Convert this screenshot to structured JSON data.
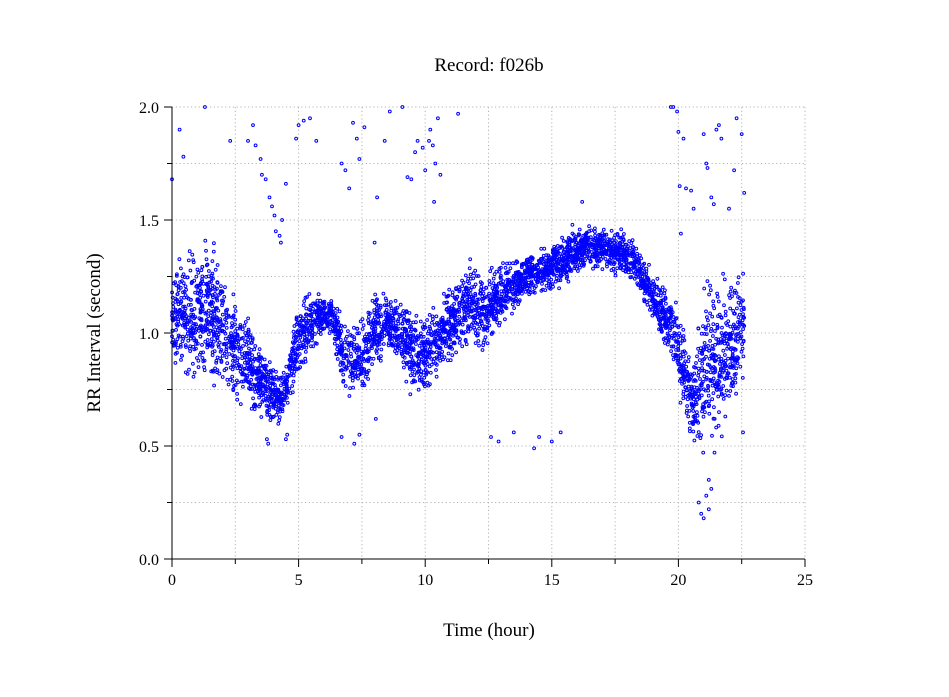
{
  "chart_data": {
    "type": "scatter",
    "title": "Record:  f026b",
    "xlabel": "Time (hour)",
    "ylabel": "RR Interval (second)",
    "xlim": [
      0,
      25
    ],
    "ylim": [
      0,
      2.0
    ],
    "x_ticks": [
      0,
      5,
      10,
      15,
      20,
      25
    ],
    "y_ticks": [
      "0.0",
      "0.5",
      "1.0",
      "1.5",
      "2.0"
    ],
    "grid": true,
    "marker_color": "#0000ff",
    "series": [
      {
        "trend_x": [
          0.0,
          0.5,
          1.0,
          1.5,
          2.0,
          2.5,
          3.0,
          3.5,
          4.0,
          4.3,
          4.6,
          5.0,
          5.3,
          5.8,
          6.3,
          6.8,
          7.3,
          7.7,
          8.0,
          8.5,
          9.0,
          9.5,
          9.8,
          10.2,
          10.8,
          11.3,
          11.8,
          12.3,
          12.8,
          13.3,
          13.8,
          14.3,
          14.8,
          15.3,
          15.8,
          16.3,
          16.8,
          17.3,
          17.8,
          18.3,
          18.8,
          19.3,
          19.8,
          20.2,
          20.5,
          20.8,
          21.1,
          21.4,
          21.7,
          22.0,
          22.3,
          22.6
        ],
        "trend_y": [
          1.1,
          1.08,
          1.12,
          1.1,
          1.02,
          0.93,
          0.88,
          0.8,
          0.72,
          0.7,
          0.8,
          0.97,
          1.02,
          1.08,
          1.07,
          0.9,
          0.88,
          0.92,
          1.03,
          1.04,
          1.0,
          0.92,
          0.9,
          0.93,
          1.02,
          1.08,
          1.12,
          1.1,
          1.15,
          1.2,
          1.23,
          1.26,
          1.28,
          1.3,
          1.35,
          1.38,
          1.38,
          1.37,
          1.36,
          1.3,
          1.2,
          1.1,
          1.0,
          0.85,
          0.7,
          0.75,
          0.85,
          0.9,
          0.88,
          0.92,
          1.0,
          1.05
        ],
        "spread": [
          0.14,
          0.18,
          0.2,
          0.18,
          0.16,
          0.14,
          0.12,
          0.1,
          0.08,
          0.06,
          0.08,
          0.1,
          0.1,
          0.06,
          0.05,
          0.1,
          0.1,
          0.12,
          0.1,
          0.08,
          0.1,
          0.12,
          0.12,
          0.1,
          0.1,
          0.1,
          0.12,
          0.1,
          0.09,
          0.07,
          0.06,
          0.06,
          0.06,
          0.07,
          0.07,
          0.06,
          0.06,
          0.06,
          0.06,
          0.06,
          0.07,
          0.08,
          0.1,
          0.12,
          0.12,
          0.16,
          0.22,
          0.26,
          0.24,
          0.18,
          0.16,
          0.15
        ],
        "outliers": [
          [
            0.0,
            1.68
          ],
          [
            0.3,
            1.9
          ],
          [
            0.45,
            1.78
          ],
          [
            1.3,
            2.0
          ],
          [
            2.3,
            1.85
          ],
          [
            3.0,
            1.85
          ],
          [
            3.2,
            1.92
          ],
          [
            3.3,
            1.83
          ],
          [
            3.5,
            1.77
          ],
          [
            3.55,
            1.7
          ],
          [
            3.7,
            1.68
          ],
          [
            3.85,
            1.6
          ],
          [
            3.95,
            1.56
          ],
          [
            4.05,
            1.52
          ],
          [
            4.1,
            1.45
          ],
          [
            4.25,
            1.43
          ],
          [
            4.3,
            1.4
          ],
          [
            4.35,
            1.5
          ],
          [
            4.5,
            1.66
          ],
          [
            4.9,
            1.86
          ],
          [
            5.0,
            1.92
          ],
          [
            5.2,
            1.94
          ],
          [
            5.45,
            1.95
          ],
          [
            5.7,
            1.85
          ],
          [
            6.7,
            1.75
          ],
          [
            6.85,
            1.72
          ],
          [
            7.0,
            1.64
          ],
          [
            7.15,
            1.93
          ],
          [
            7.3,
            1.86
          ],
          [
            7.4,
            1.77
          ],
          [
            7.6,
            1.91
          ],
          [
            8.0,
            1.4
          ],
          [
            8.1,
            1.6
          ],
          [
            8.4,
            1.85
          ],
          [
            8.6,
            1.98
          ],
          [
            9.1,
            2.0
          ],
          [
            9.3,
            1.69
          ],
          [
            9.45,
            1.68
          ],
          [
            9.6,
            1.8
          ],
          [
            9.7,
            1.85
          ],
          [
            9.9,
            1.82
          ],
          [
            10.0,
            1.72
          ],
          [
            10.15,
            1.85
          ],
          [
            10.2,
            1.9
          ],
          [
            10.3,
            1.83
          ],
          [
            10.35,
            1.58
          ],
          [
            10.4,
            1.75
          ],
          [
            10.5,
            1.95
          ],
          [
            10.6,
            1.7
          ],
          [
            11.3,
            1.97
          ],
          [
            3.75,
            0.53
          ],
          [
            3.8,
            0.51
          ],
          [
            4.5,
            0.53
          ],
          [
            4.55,
            0.55
          ],
          [
            6.7,
            0.54
          ],
          [
            7.2,
            0.51
          ],
          [
            7.4,
            0.55
          ],
          [
            8.05,
            0.62
          ],
          [
            12.6,
            0.54
          ],
          [
            12.9,
            0.52
          ],
          [
            13.5,
            0.56
          ],
          [
            14.3,
            0.49
          ],
          [
            14.5,
            0.54
          ],
          [
            15.0,
            0.52
          ],
          [
            15.35,
            0.56
          ],
          [
            16.2,
            1.58
          ],
          [
            19.7,
            2.0
          ],
          [
            19.8,
            2.0
          ],
          [
            19.95,
            1.98
          ],
          [
            20.0,
            1.89
          ],
          [
            20.05,
            1.65
          ],
          [
            20.1,
            1.44
          ],
          [
            20.2,
            1.86
          ],
          [
            20.3,
            1.64
          ],
          [
            20.5,
            1.63
          ],
          [
            20.6,
            1.55
          ],
          [
            21.0,
            1.88
          ],
          [
            21.1,
            1.75
          ],
          [
            21.15,
            1.73
          ],
          [
            21.3,
            1.6
          ],
          [
            21.4,
            1.57
          ],
          [
            21.5,
            1.9
          ],
          [
            21.6,
            1.92
          ],
          [
            21.7,
            1.86
          ],
          [
            22.0,
            1.55
          ],
          [
            22.2,
            1.72
          ],
          [
            22.3,
            1.95
          ],
          [
            22.5,
            1.88
          ],
          [
            22.6,
            1.62
          ],
          [
            20.9,
            0.2
          ],
          [
            21.0,
            0.18
          ],
          [
            21.2,
            0.22
          ],
          [
            21.1,
            0.28
          ],
          [
            21.3,
            0.31
          ],
          [
            20.8,
            0.25
          ],
          [
            21.2,
            0.35
          ],
          [
            22.55,
            0.56
          ]
        ]
      }
    ]
  }
}
